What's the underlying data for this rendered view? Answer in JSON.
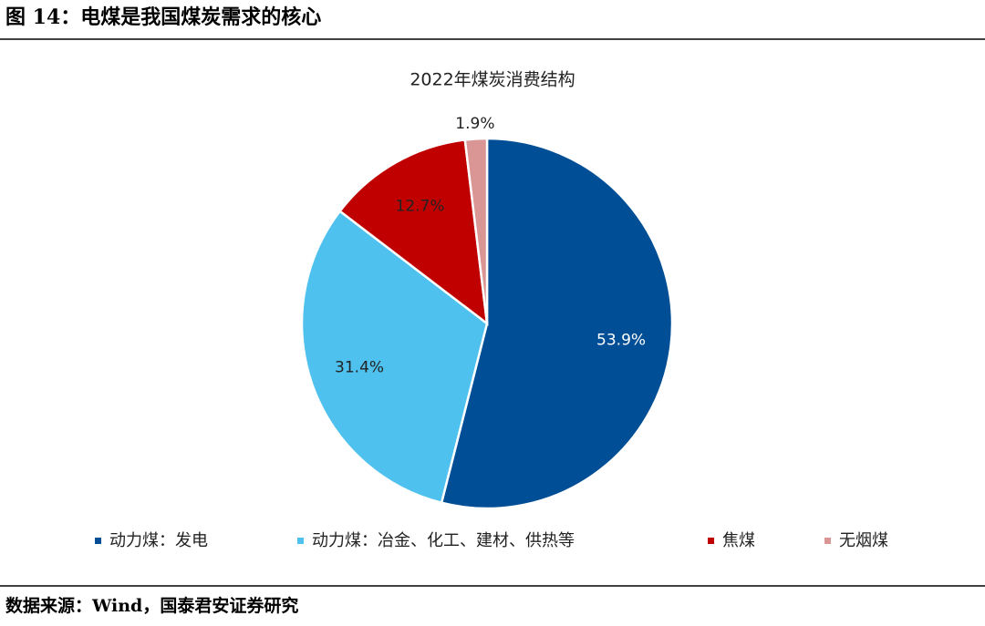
{
  "header": {
    "title": "图 14：电煤是我国煤炭需求的核心"
  },
  "chart_data": {
    "type": "pie",
    "title": "2022年煤炭消费结构",
    "categories": [
      "动力煤：发电",
      "动力煤：冶金、化工、建材、供热等",
      "焦煤",
      "无烟煤"
    ],
    "values": [
      53.9,
      31.4,
      12.7,
      1.9
    ],
    "value_labels": [
      "53.9%",
      "31.4%",
      "12.7%",
      "1.9%"
    ],
    "colors": [
      "#004e96",
      "#4fc1ef",
      "#c00000",
      "#d99694"
    ],
    "legend": "bottom"
  },
  "footer": {
    "source": "数据来源：Wind，国泰君安证券研究"
  }
}
